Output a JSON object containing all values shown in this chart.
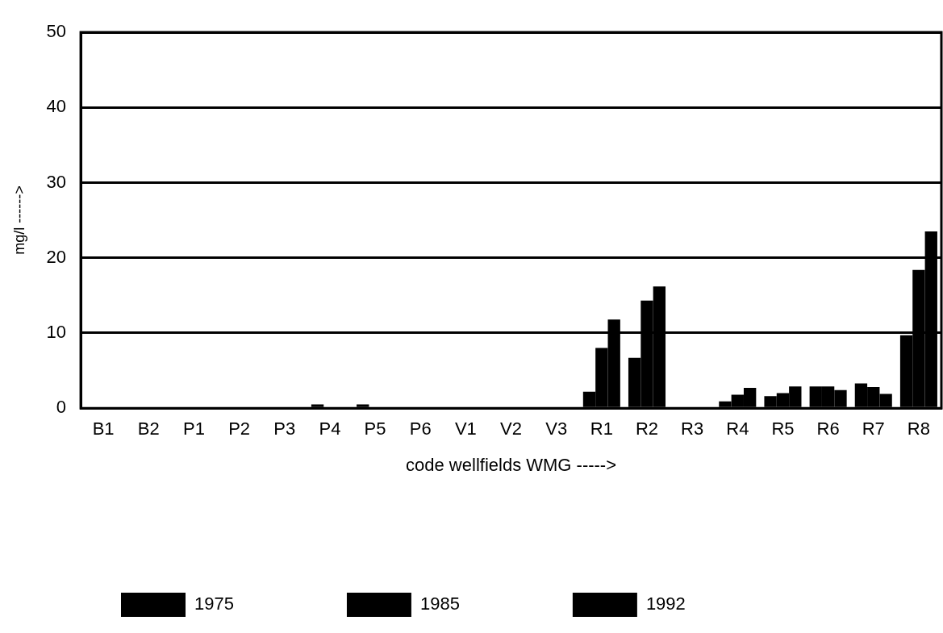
{
  "chart_data": {
    "type": "bar",
    "categories": [
      "B1",
      "B2",
      "P1",
      "P2",
      "P3",
      "P4",
      "P5",
      "P6",
      "V1",
      "V2",
      "V3",
      "R1",
      "R2",
      "R3",
      "R4",
      "R5",
      "R6",
      "R7",
      "R8"
    ],
    "series": [
      {
        "name": "1975",
        "color": "#000000",
        "values": [
          null,
          null,
          null,
          null,
          null,
          0.5,
          0.5,
          null,
          null,
          null,
          null,
          2.2,
          6.7,
          null,
          0.9,
          1.6,
          2.9,
          3.3,
          9.7
        ]
      },
      {
        "name": "1985",
        "color": "#000000",
        "values": [
          null,
          null,
          null,
          null,
          null,
          null,
          null,
          null,
          null,
          null,
          null,
          8.0,
          14.3,
          null,
          1.8,
          2.0,
          2.9,
          2.8,
          18.4
        ]
      },
      {
        "name": "1992",
        "color": "#000000",
        "values": [
          null,
          null,
          null,
          null,
          null,
          null,
          null,
          null,
          null,
          null,
          null,
          11.8,
          16.2,
          null,
          2.7,
          2.9,
          2.4,
          1.9,
          23.5
        ]
      }
    ],
    "xlabel": "code wellfields WMG ----->",
    "ylabel": "mg/l ------>",
    "ylim": [
      0,
      50
    ],
    "yticks": [
      0,
      10,
      20,
      30,
      40,
      50
    ],
    "grid": "y",
    "legend": "bottom"
  }
}
